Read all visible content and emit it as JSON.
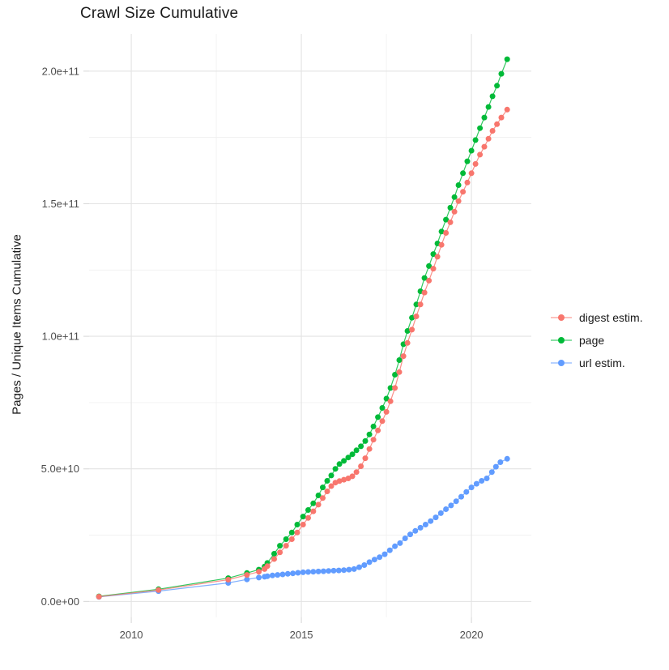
{
  "chart_data": {
    "type": "line",
    "title": "Crawl Size Cumulative",
    "xlabel": "",
    "ylabel": "Pages / Unique Items Cumulative",
    "y_unit": "1e9",
    "grid": true,
    "legend_position": "right",
    "xlim": [
      2008.76,
      2021.76
    ],
    "ylim_e9": [
      -6,
      214
    ],
    "x_ticks": [
      {
        "label": "2010",
        "value": 2010
      },
      {
        "label": "2015",
        "value": 2015
      },
      {
        "label": "2020",
        "value": 2020
      }
    ],
    "x_minor_ticks": [
      2012.5,
      2017.5
    ],
    "y_ticks": [
      {
        "label": "0.0e+00",
        "value_e9": 0
      },
      {
        "label": "5.0e+10",
        "value_e9": 50
      },
      {
        "label": "1.0e+11",
        "value_e9": 100
      },
      {
        "label": "1.5e+11",
        "value_e9": 150
      },
      {
        "label": "2.0e+11",
        "value_e9": 200
      }
    ],
    "y_minor_ticks_e9": [
      25,
      75,
      125,
      175
    ],
    "series": [
      {
        "name": "digest estim.",
        "color": "#F8766D",
        "points": [
          [
            2009.05,
            1.8
          ],
          [
            2010.8,
            4.3
          ],
          [
            2012.85,
            8.2
          ],
          [
            2013.4,
            10.0
          ],
          [
            2013.75,
            11.2
          ],
          [
            2013.92,
            12.2
          ],
          [
            2014.0,
            13.3
          ],
          [
            2014.2,
            16.0
          ],
          [
            2014.37,
            18.5
          ],
          [
            2014.55,
            21.0
          ],
          [
            2014.72,
            23.5
          ],
          [
            2014.88,
            26.0
          ],
          [
            2015.05,
            29.0
          ],
          [
            2015.2,
            31.5
          ],
          [
            2015.35,
            34.0
          ],
          [
            2015.5,
            36.5
          ],
          [
            2015.63,
            39.0
          ],
          [
            2015.76,
            41.5
          ],
          [
            2015.88,
            43.5
          ],
          [
            2016.0,
            44.8
          ],
          [
            2016.12,
            45.4
          ],
          [
            2016.25,
            45.9
          ],
          [
            2016.38,
            46.4
          ],
          [
            2016.5,
            47.2
          ],
          [
            2016.62,
            48.8
          ],
          [
            2016.75,
            51.0
          ],
          [
            2016.88,
            54.0
          ],
          [
            2017.0,
            57.5
          ],
          [
            2017.12,
            61.0
          ],
          [
            2017.25,
            64.5
          ],
          [
            2017.38,
            68.0
          ],
          [
            2017.5,
            71.5
          ],
          [
            2017.62,
            75.5
          ],
          [
            2017.75,
            80.5
          ],
          [
            2017.88,
            86.5
          ],
          [
            2018.0,
            92.5
          ],
          [
            2018.12,
            97.5
          ],
          [
            2018.25,
            102.5
          ],
          [
            2018.38,
            107.5
          ],
          [
            2018.5,
            112.0
          ],
          [
            2018.62,
            116.5
          ],
          [
            2018.75,
            121.0
          ],
          [
            2018.88,
            125.5
          ],
          [
            2019.0,
            130.0
          ],
          [
            2019.12,
            134.5
          ],
          [
            2019.25,
            139.0
          ],
          [
            2019.38,
            143.0
          ],
          [
            2019.5,
            147.0
          ],
          [
            2019.62,
            151.0
          ],
          [
            2019.75,
            154.5
          ],
          [
            2019.88,
            158.0
          ],
          [
            2020.0,
            161.5
          ],
          [
            2020.12,
            165.0
          ],
          [
            2020.25,
            168.5
          ],
          [
            2020.38,
            171.5
          ],
          [
            2020.5,
            174.5
          ],
          [
            2020.62,
            177.5
          ],
          [
            2020.75,
            180.0
          ],
          [
            2020.88,
            182.5
          ],
          [
            2021.05,
            185.5
          ]
        ]
      },
      {
        "name": "page",
        "color": "#00BA38",
        "points": [
          [
            2009.05,
            1.9
          ],
          [
            2010.8,
            4.6
          ],
          [
            2012.85,
            8.8
          ],
          [
            2013.4,
            10.7
          ],
          [
            2013.75,
            12.0
          ],
          [
            2013.92,
            13.2
          ],
          [
            2014.0,
            14.5
          ],
          [
            2014.2,
            18.0
          ],
          [
            2014.37,
            21.0
          ],
          [
            2014.55,
            23.5
          ],
          [
            2014.72,
            26.0
          ],
          [
            2014.88,
            29.0
          ],
          [
            2015.05,
            32.0
          ],
          [
            2015.2,
            34.5
          ],
          [
            2015.35,
            37.0
          ],
          [
            2015.5,
            40.0
          ],
          [
            2015.63,
            43.0
          ],
          [
            2015.76,
            45.5
          ],
          [
            2015.88,
            47.5
          ],
          [
            2016.0,
            50.0
          ],
          [
            2016.12,
            51.8
          ],
          [
            2016.25,
            53.0
          ],
          [
            2016.38,
            54.3
          ],
          [
            2016.5,
            55.5
          ],
          [
            2016.62,
            57.0
          ],
          [
            2016.75,
            58.5
          ],
          [
            2016.88,
            60.5
          ],
          [
            2017.0,
            63.0
          ],
          [
            2017.12,
            66.0
          ],
          [
            2017.25,
            69.5
          ],
          [
            2017.38,
            73.0
          ],
          [
            2017.5,
            76.5
          ],
          [
            2017.62,
            80.5
          ],
          [
            2017.75,
            85.5
          ],
          [
            2017.88,
            91.0
          ],
          [
            2018.0,
            97.0
          ],
          [
            2018.12,
            102.0
          ],
          [
            2018.25,
            107.0
          ],
          [
            2018.38,
            112.0
          ],
          [
            2018.5,
            117.0
          ],
          [
            2018.62,
            122.0
          ],
          [
            2018.75,
            126.5
          ],
          [
            2018.88,
            131.0
          ],
          [
            2019.0,
            135.0
          ],
          [
            2019.12,
            139.5
          ],
          [
            2019.25,
            144.0
          ],
          [
            2019.38,
            148.5
          ],
          [
            2019.5,
            152.5
          ],
          [
            2019.62,
            157.0
          ],
          [
            2019.75,
            161.5
          ],
          [
            2019.88,
            166.0
          ],
          [
            2020.0,
            170.0
          ],
          [
            2020.12,
            174.0
          ],
          [
            2020.25,
            178.5
          ],
          [
            2020.38,
            182.5
          ],
          [
            2020.5,
            186.5
          ],
          [
            2020.62,
            190.5
          ],
          [
            2020.75,
            194.5
          ],
          [
            2020.88,
            199.0
          ],
          [
            2021.05,
            204.5
          ]
        ]
      },
      {
        "name": "url estim.",
        "color": "#619CFF",
        "points": [
          [
            2009.05,
            1.7
          ],
          [
            2010.8,
            3.9
          ],
          [
            2012.85,
            7.0
          ],
          [
            2013.4,
            8.3
          ],
          [
            2013.75,
            9.0
          ],
          [
            2013.92,
            9.3
          ],
          [
            2014.0,
            9.5
          ],
          [
            2014.15,
            9.8
          ],
          [
            2014.3,
            10.0
          ],
          [
            2014.45,
            10.2
          ],
          [
            2014.6,
            10.4
          ],
          [
            2014.75,
            10.6
          ],
          [
            2014.9,
            10.8
          ],
          [
            2015.05,
            11.0
          ],
          [
            2015.2,
            11.1
          ],
          [
            2015.35,
            11.2
          ],
          [
            2015.5,
            11.3
          ],
          [
            2015.65,
            11.4
          ],
          [
            2015.8,
            11.5
          ],
          [
            2015.95,
            11.6
          ],
          [
            2016.1,
            11.7
          ],
          [
            2016.25,
            11.8
          ],
          [
            2016.4,
            12.0
          ],
          [
            2016.55,
            12.2
          ],
          [
            2016.7,
            12.9
          ],
          [
            2016.85,
            13.7
          ],
          [
            2017.0,
            14.8
          ],
          [
            2017.15,
            15.8
          ],
          [
            2017.3,
            16.7
          ],
          [
            2017.45,
            17.8
          ],
          [
            2017.6,
            19.3
          ],
          [
            2017.75,
            20.8
          ],
          [
            2017.9,
            22.0
          ],
          [
            2018.05,
            23.8
          ],
          [
            2018.2,
            25.3
          ],
          [
            2018.35,
            26.6
          ],
          [
            2018.5,
            27.8
          ],
          [
            2018.65,
            29.0
          ],
          [
            2018.8,
            30.3
          ],
          [
            2018.95,
            31.7
          ],
          [
            2019.1,
            33.3
          ],
          [
            2019.25,
            34.8
          ],
          [
            2019.4,
            36.2
          ],
          [
            2019.55,
            37.8
          ],
          [
            2019.7,
            39.5
          ],
          [
            2019.85,
            41.3
          ],
          [
            2020.0,
            43.0
          ],
          [
            2020.15,
            44.4
          ],
          [
            2020.3,
            45.5
          ],
          [
            2020.45,
            46.4
          ],
          [
            2020.6,
            48.8
          ],
          [
            2020.72,
            50.8
          ],
          [
            2020.85,
            52.5
          ],
          [
            2021.05,
            53.8
          ]
        ]
      }
    ]
  }
}
